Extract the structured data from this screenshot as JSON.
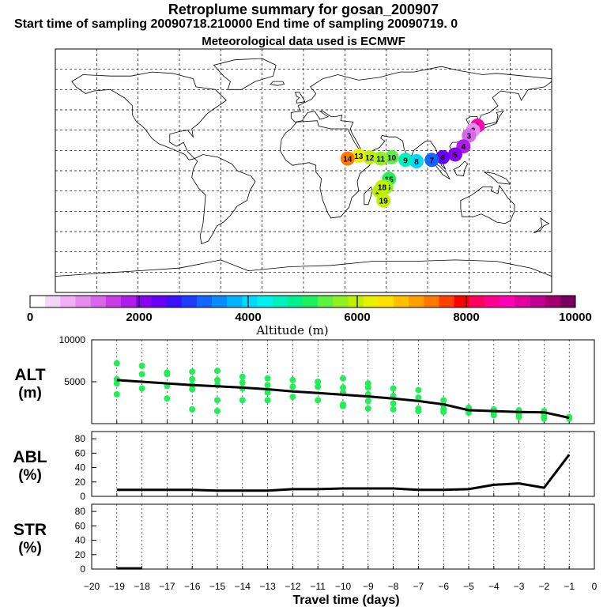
{
  "header": {
    "title": "Retroplume summary for gosan_200907",
    "sampling_line": "Start time of sampling 20090718.210000     End time of sampling 20090719.     0",
    "met_line": "Meteorological data used is ECMWF"
  },
  "colors": {
    "scatter": "#22ee55",
    "line": "#000000",
    "palette": [
      "#ffffff",
      "#f4d4f7",
      "#eeb0f3",
      "#e68cf0",
      "#d966ec",
      "#c83ee6",
      "#ad1ee8",
      "#8a00f0",
      "#6a00f8",
      "#3b10ff",
      "#1e3cff",
      "#1464ff",
      "#0a8cff",
      "#00b4ff",
      "#00d8ff",
      "#00f0f0",
      "#00f0c0",
      "#00f090",
      "#20f060",
      "#60f040",
      "#90f020",
      "#c0f000",
      "#e8f000",
      "#ffe000",
      "#ffc000",
      "#ffa000",
      "#ff7800",
      "#ff4000",
      "#ff0000",
      "#ff0060",
      "#ff0090",
      "#ff00b4",
      "#e000a0",
      "#c00090",
      "#a00070",
      "#780060"
    ]
  },
  "colorbar": {
    "tick_labels": [
      "0",
      "2000",
      "4000",
      "6000",
      "8000",
      "10000"
    ],
    "label": "Altitude (m)"
  },
  "map": {
    "points": [
      {
        "label": "1",
        "lon": 126.2,
        "lat": 33.3,
        "color": "#ff00b4"
      },
      {
        "label": "2",
        "lon": 123,
        "lat": 30,
        "color": "#e68cf0"
      },
      {
        "label": "3",
        "lon": 120,
        "lat": 26,
        "color": "#d966ec"
      },
      {
        "label": "4",
        "lon": 116,
        "lat": 18,
        "color": "#ad1ee8"
      },
      {
        "label": "5",
        "lon": 110,
        "lat": 12,
        "color": "#8a00f0"
      },
      {
        "label": "6",
        "lon": 101,
        "lat": 10,
        "color": "#6a00f8"
      },
      {
        "label": "7",
        "lon": 93,
        "lat": 8,
        "color": "#1464ff"
      },
      {
        "label": "8",
        "lon": 82,
        "lat": 7,
        "color": "#00d8ff"
      },
      {
        "label": "9",
        "lon": 74,
        "lat": 8,
        "color": "#00f0c0"
      },
      {
        "label": "10",
        "lon": 64,
        "lat": 10,
        "color": "#60f040"
      },
      {
        "label": "11",
        "lon": 56,
        "lat": 9,
        "color": "#90f020"
      },
      {
        "label": "12",
        "lon": 48,
        "lat": 10,
        "color": "#c0f000"
      },
      {
        "label": "13",
        "lon": 40,
        "lat": 11,
        "color": "#e8f000"
      },
      {
        "label": "14",
        "lon": 32,
        "lat": 9,
        "color": "#ff7800"
      },
      {
        "label": "15",
        "lon": 62,
        "lat": -6,
        "color": "#20f060"
      },
      {
        "label": "16",
        "lon": 60,
        "lat": -12,
        "color": "#90f020"
      },
      {
        "label": "17",
        "lon": 55,
        "lat": -15,
        "color": "#c0f000"
      },
      {
        "label": "18",
        "lon": 57,
        "lat": -12,
        "color": "#c0f000"
      },
      {
        "label": "19",
        "lon": 58,
        "lat": -22,
        "color": "#c0f000"
      }
    ]
  },
  "chart_data": [
    {
      "type": "scatter",
      "panel": "altitude",
      "ylabel_line1": "ALT",
      "ylabel_line2": "(m)",
      "ylim": [
        0,
        10000
      ],
      "yticks": [
        0,
        5000,
        10000
      ],
      "ytick_labels": [
        "",
        "5000",
        "10000"
      ],
      "xlim": [
        -20,
        0
      ],
      "x": [
        -19,
        -18,
        -17,
        -16,
        -15,
        -14,
        -13,
        -12,
        -11,
        -10,
        -9,
        -8,
        -7,
        -6,
        -5,
        -4,
        -3,
        -2,
        -1
      ],
      "median_values": [
        5200,
        5000,
        4800,
        4600,
        4450,
        4300,
        4100,
        3850,
        3650,
        3450,
        3250,
        3000,
        2700,
        2300,
        1600,
        1500,
        1400,
        1350,
        700
      ],
      "scatter_points": [
        [
          -19,
          7200
        ],
        [
          -19,
          5300
        ],
        [
          -19,
          4800
        ],
        [
          -19,
          3500
        ],
        [
          -18,
          6900
        ],
        [
          -18,
          5900
        ],
        [
          -18,
          4200
        ],
        [
          -17,
          6100
        ],
        [
          -17,
          5900
        ],
        [
          -17,
          4500
        ],
        [
          -17,
          3000
        ],
        [
          -16,
          6200
        ],
        [
          -16,
          5300
        ],
        [
          -16,
          4600
        ],
        [
          -16,
          4100
        ],
        [
          -16,
          1700
        ],
        [
          -15,
          6300
        ],
        [
          -15,
          5200
        ],
        [
          -15,
          4600
        ],
        [
          -15,
          2800
        ],
        [
          -15,
          1500
        ],
        [
          -14,
          5600
        ],
        [
          -14,
          4900
        ],
        [
          -14,
          4200
        ],
        [
          -14,
          2800
        ],
        [
          -13,
          5400
        ],
        [
          -13,
          4600
        ],
        [
          -13,
          3700
        ],
        [
          -13,
          2800
        ],
        [
          -12,
          5200
        ],
        [
          -12,
          4400
        ],
        [
          -12,
          3200
        ],
        [
          -11,
          5000
        ],
        [
          -11,
          4400
        ],
        [
          -11,
          2800
        ],
        [
          -10,
          5400
        ],
        [
          -10,
          4300
        ],
        [
          -10,
          3700
        ],
        [
          -10,
          2300
        ],
        [
          -10,
          2100
        ],
        [
          -9,
          4800
        ],
        [
          -9,
          4300
        ],
        [
          -9,
          3500
        ],
        [
          -9,
          2700
        ],
        [
          -9,
          1800
        ],
        [
          -8,
          4200
        ],
        [
          -8,
          3300
        ],
        [
          -8,
          2400
        ],
        [
          -8,
          1700
        ],
        [
          -7,
          4000
        ],
        [
          -7,
          3100
        ],
        [
          -7,
          1800
        ],
        [
          -7,
          1500
        ],
        [
          -6,
          2800
        ],
        [
          -6,
          2200
        ],
        [
          -6,
          1700
        ],
        [
          -6,
          1400
        ],
        [
          -5,
          1900
        ],
        [
          -5,
          1600
        ],
        [
          -5,
          1300
        ],
        [
          -4,
          1700
        ],
        [
          -4,
          1300
        ],
        [
          -4,
          1000
        ],
        [
          -3,
          1600
        ],
        [
          -3,
          1200
        ],
        [
          -3,
          800
        ],
        [
          -2,
          1500
        ],
        [
          -2,
          1200
        ],
        [
          -2,
          800
        ],
        [
          -2,
          600
        ],
        [
          -1,
          800
        ],
        [
          -1,
          600
        ]
      ]
    },
    {
      "type": "line",
      "panel": "abl",
      "ylabel_line1": "ABL",
      "ylabel_line2": "(%)",
      "ylim": [
        0,
        90
      ],
      "yticks": [
        0,
        20,
        40,
        60,
        80
      ],
      "ytick_labels": [
        "0",
        "20",
        "40",
        "60",
        "80"
      ],
      "xlim": [
        -20,
        0
      ],
      "x": [
        -19,
        -18,
        -17,
        -16,
        -15,
        -14,
        -13,
        -12,
        -11,
        -10,
        -9,
        -8,
        -7,
        -6,
        -5,
        -4,
        -3,
        -2,
        -1
      ],
      "values": [
        9,
        9,
        9,
        9,
        8,
        8,
        8,
        10,
        10,
        11,
        11,
        11,
        9,
        9,
        10,
        16,
        18,
        12,
        58
      ]
    },
    {
      "type": "line",
      "panel": "str",
      "ylabel_line1": "STR",
      "ylabel_line2": "(%)",
      "ylim": [
        0,
        90
      ],
      "yticks": [
        0,
        20,
        40,
        60,
        80
      ],
      "ytick_labels": [
        "0",
        "20",
        "40",
        "60",
        "80"
      ],
      "xlim": [
        -20,
        0
      ],
      "x": [
        -19,
        -18
      ],
      "values": [
        1,
        1
      ],
      "xlabel": "Travel time (days)",
      "xtick_labels": [
        "−20",
        "−19",
        "−18",
        "−17",
        "−16",
        "−15",
        "−14",
        "−13",
        "−12",
        "−11",
        "−10",
        "−9",
        "−8",
        "−7",
        "−6",
        "−5",
        "−4",
        "−3",
        "−2",
        "−1",
        "0"
      ]
    }
  ]
}
